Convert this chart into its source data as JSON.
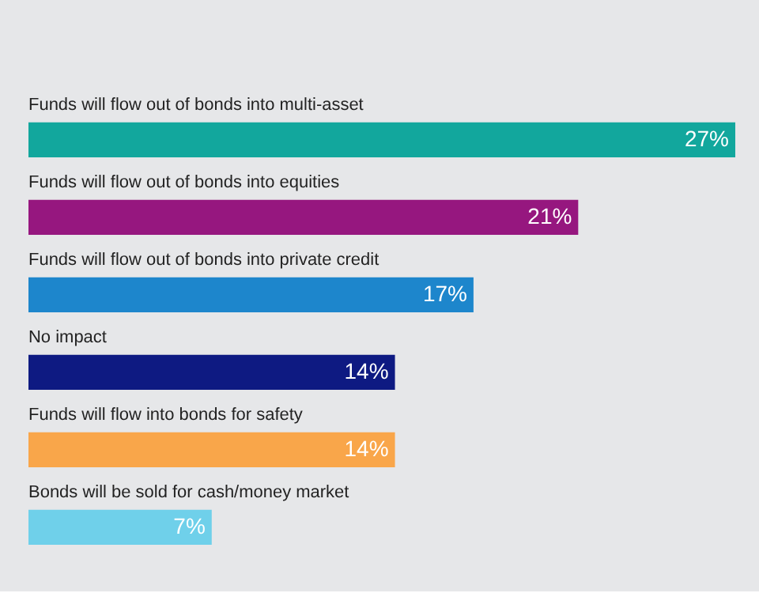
{
  "chart_data": {
    "type": "bar",
    "orientation": "horizontal",
    "data_labels": true,
    "categories": [
      "Funds will flow out of bonds into multi-asset",
      "Funds will flow out of bonds into equities",
      "Funds will flow out of bonds into private credit",
      "No impact",
      "Funds will flow into bonds for safety",
      "Bonds will be sold for cash/money market"
    ],
    "values": [
      27,
      21,
      17,
      14,
      14,
      7
    ],
    "value_labels": [
      "27%",
      "21%",
      "17%",
      "14%",
      "14%",
      "7%"
    ],
    "colors": [
      "#12a79d",
      "#96177f",
      "#1d86cc",
      "#0e1a82",
      "#f9a64a",
      "#6fd0ea"
    ]
  }
}
